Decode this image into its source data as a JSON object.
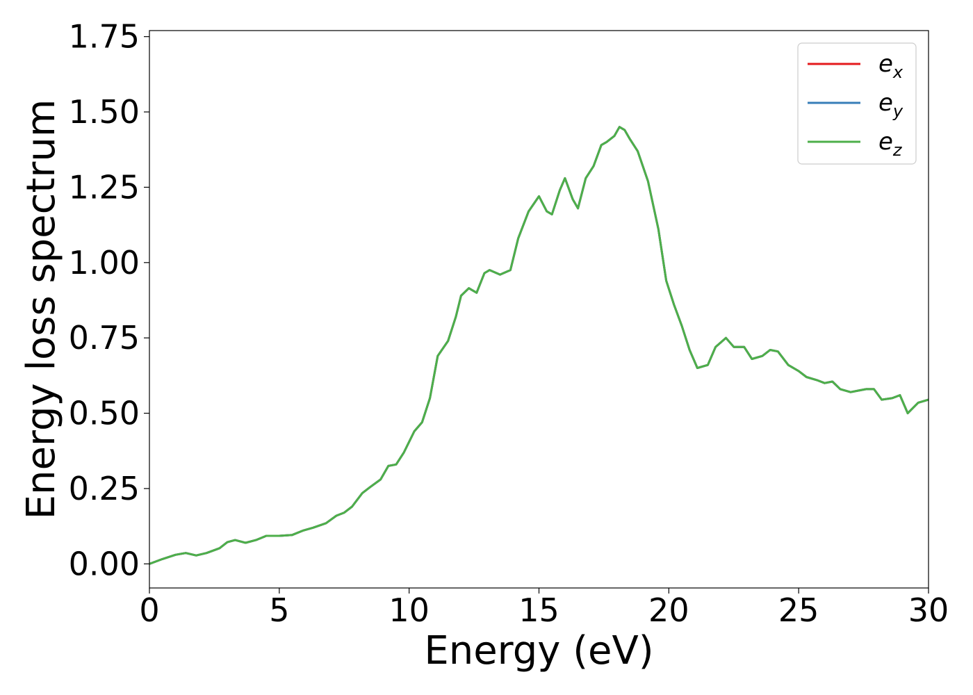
{
  "chart_data": {
    "type": "line",
    "title": "",
    "xlabel": "Energy (eV)",
    "ylabel": "Energy loss spectrum",
    "xlim": [
      0,
      30
    ],
    "ylim": [
      -0.08,
      1.77
    ],
    "x_ticks": [
      0,
      5,
      10,
      15,
      20,
      25,
      30
    ],
    "x_tick_labels": [
      "0",
      "5",
      "10",
      "15",
      "20",
      "25",
      "30"
    ],
    "y_ticks": [
      0,
      0.25,
      0.5,
      0.75,
      1.0,
      1.25,
      1.5,
      1.75
    ],
    "y_tick_labels": [
      "0.00",
      "0.25",
      "0.50",
      "0.75",
      "1.00",
      "1.25",
      "1.50",
      "1.75"
    ],
    "grid": false,
    "legend_position": "top-right",
    "x": [
      0,
      0.5,
      1.0,
      1.4,
      1.8,
      2.2,
      2.7,
      3.0,
      3.3,
      3.7,
      4.1,
      4.5,
      5.0,
      5.5,
      5.9,
      6.3,
      6.8,
      7.2,
      7.5,
      7.8,
      8.2,
      8.5,
      8.9,
      9.2,
      9.5,
      9.8,
      10.2,
      10.5,
      10.8,
      11.1,
      11.5,
      11.8,
      12.0,
      12.3,
      12.6,
      12.9,
      13.1,
      13.5,
      13.9,
      14.2,
      14.6,
      15.0,
      15.3,
      15.5,
      15.8,
      16.0,
      16.3,
      16.5,
      16.8,
      17.1,
      17.4,
      17.6,
      17.9,
      18.1,
      18.3,
      18.5,
      18.8,
      19.2,
      19.6,
      19.9,
      20.2,
      20.5,
      20.8,
      21.1,
      21.5,
      21.8,
      22.2,
      22.5,
      22.9,
      23.2,
      23.6,
      23.9,
      24.2,
      24.6,
      25.0,
      25.3,
      25.7,
      26.0,
      26.3,
      26.6,
      27.0,
      27.3,
      27.6,
      27.9,
      28.2,
      28.6,
      28.9,
      29.2,
      29.6,
      30.0
    ],
    "series": [
      {
        "name": "e_x",
        "color": "#e41a1c",
        "values": [
          0,
          0.016,
          0.03,
          0.036,
          0.028,
          0.036,
          0.052,
          0.072,
          0.079,
          0.07,
          0.079,
          0.093,
          0.093,
          0.096,
          0.11,
          0.12,
          0.135,
          0.16,
          0.17,
          0.19,
          0.235,
          0.255,
          0.28,
          0.325,
          0.33,
          0.37,
          0.44,
          0.47,
          0.55,
          0.69,
          0.74,
          0.82,
          0.89,
          0.915,
          0.9,
          0.965,
          0.975,
          0.96,
          0.975,
          1.08,
          1.17,
          1.22,
          1.17,
          1.16,
          1.24,
          1.28,
          1.21,
          1.18,
          1.28,
          1.32,
          1.39,
          1.4,
          1.42,
          1.45,
          1.44,
          1.41,
          1.37,
          1.27,
          1.11,
          0.94,
          0.86,
          0.79,
          0.71,
          0.65,
          0.66,
          0.72,
          0.75,
          0.72,
          0.72,
          0.68,
          0.69,
          0.71,
          0.705,
          0.66,
          0.64,
          0.62,
          0.61,
          0.6,
          0.605,
          0.58,
          0.57,
          0.575,
          0.58,
          0.58,
          0.545,
          0.55,
          0.56,
          0.5,
          0.535,
          0.545
        ]
      },
      {
        "name": "e_y",
        "color": "#377eb8",
        "values": [
          0,
          0.016,
          0.03,
          0.036,
          0.028,
          0.036,
          0.052,
          0.072,
          0.079,
          0.07,
          0.079,
          0.093,
          0.093,
          0.096,
          0.11,
          0.12,
          0.135,
          0.16,
          0.17,
          0.19,
          0.235,
          0.255,
          0.28,
          0.325,
          0.33,
          0.37,
          0.44,
          0.47,
          0.55,
          0.69,
          0.74,
          0.82,
          0.89,
          0.915,
          0.9,
          0.965,
          0.975,
          0.96,
          0.975,
          1.08,
          1.17,
          1.22,
          1.17,
          1.16,
          1.24,
          1.28,
          1.21,
          1.18,
          1.28,
          1.32,
          1.39,
          1.4,
          1.42,
          1.45,
          1.44,
          1.41,
          1.37,
          1.27,
          1.11,
          0.94,
          0.86,
          0.79,
          0.71,
          0.65,
          0.66,
          0.72,
          0.75,
          0.72,
          0.72,
          0.68,
          0.69,
          0.71,
          0.705,
          0.66,
          0.64,
          0.62,
          0.61,
          0.6,
          0.605,
          0.58,
          0.57,
          0.575,
          0.58,
          0.58,
          0.545,
          0.55,
          0.56,
          0.5,
          0.535,
          0.545
        ]
      },
      {
        "name": "e_z",
        "color": "#4daf4a",
        "values": [
          0,
          0.016,
          0.03,
          0.036,
          0.028,
          0.036,
          0.052,
          0.072,
          0.079,
          0.07,
          0.079,
          0.093,
          0.093,
          0.096,
          0.11,
          0.12,
          0.135,
          0.16,
          0.17,
          0.19,
          0.235,
          0.255,
          0.28,
          0.325,
          0.33,
          0.37,
          0.44,
          0.47,
          0.55,
          0.69,
          0.74,
          0.82,
          0.89,
          0.915,
          0.9,
          0.965,
          0.975,
          0.96,
          0.975,
          1.08,
          1.17,
          1.22,
          1.17,
          1.16,
          1.24,
          1.28,
          1.21,
          1.18,
          1.28,
          1.32,
          1.39,
          1.4,
          1.42,
          1.45,
          1.44,
          1.41,
          1.37,
          1.27,
          1.11,
          0.94,
          0.86,
          0.79,
          0.71,
          0.65,
          0.66,
          0.72,
          0.75,
          0.72,
          0.72,
          0.68,
          0.69,
          0.71,
          0.705,
          0.66,
          0.64,
          0.62,
          0.61,
          0.6,
          0.605,
          0.58,
          0.57,
          0.575,
          0.58,
          0.58,
          0.545,
          0.55,
          0.56,
          0.5,
          0.535,
          0.545
        ]
      }
    ],
    "legend": [
      {
        "base": "e",
        "sub": "x"
      },
      {
        "base": "e",
        "sub": "y"
      },
      {
        "base": "e",
        "sub": "z"
      }
    ]
  }
}
